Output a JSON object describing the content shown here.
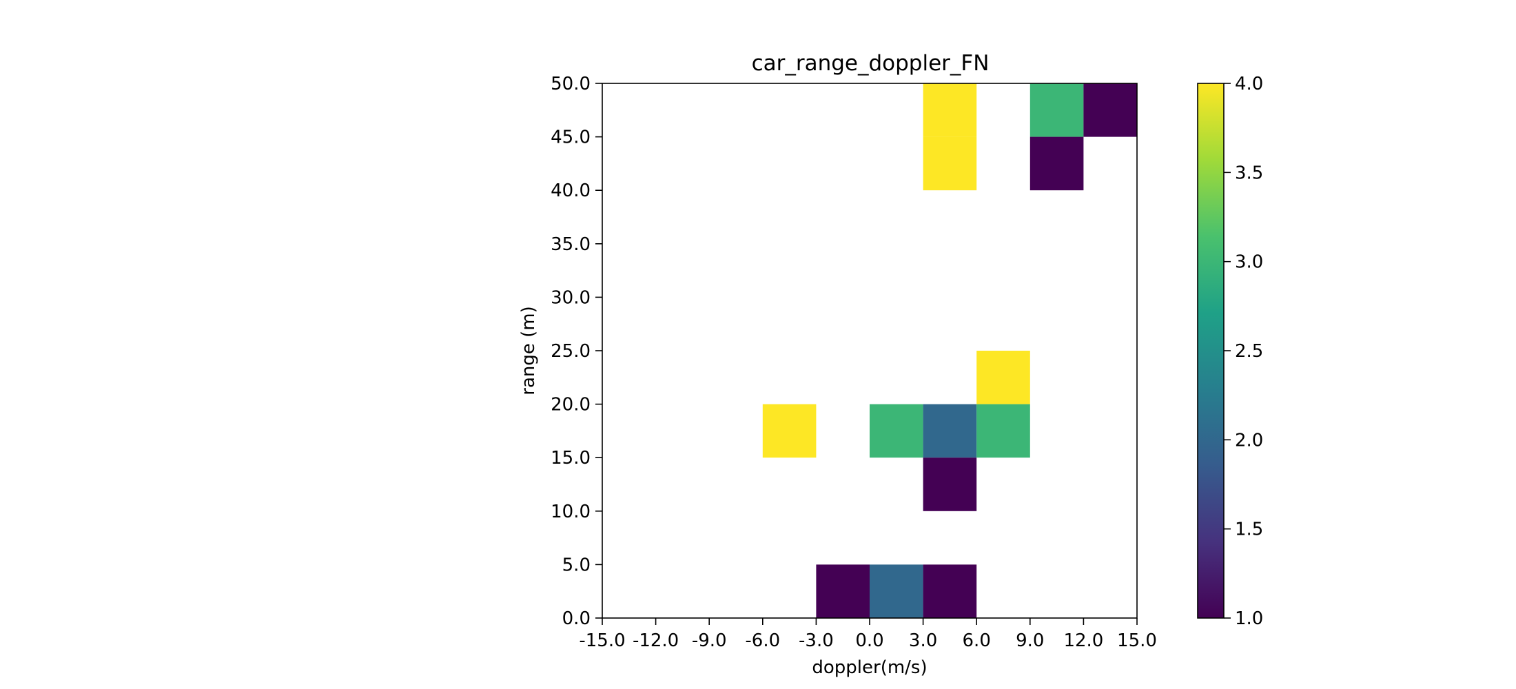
{
  "chart_data": {
    "type": "heatmap",
    "title": "car_range_doppler_FN",
    "xlabel": "doppler(m/s)",
    "ylabel": "range (m)",
    "xlim": [
      -15,
      15
    ],
    "ylim": [
      0,
      50
    ],
    "x_ticks": [
      "-15.0",
      "-12.0",
      "-9.0",
      "-6.0",
      "-3.0",
      "0.0",
      "3.0",
      "6.0",
      "9.0",
      "12.0",
      "15.0"
    ],
    "y_ticks": [
      "0.0",
      "5.0",
      "10.0",
      "15.0",
      "20.0",
      "25.0",
      "30.0",
      "35.0",
      "40.0",
      "45.0",
      "50.0"
    ],
    "cell_size": {
      "doppler": 3,
      "range": 5
    },
    "colorbar": {
      "min": 1.0,
      "max": 4.0,
      "ticks": [
        "1.0",
        "1.5",
        "2.0",
        "2.5",
        "3.0",
        "3.5",
        "4.0"
      ],
      "colormap": "viridis"
    },
    "cells": [
      {
        "doppler": 3,
        "range": 45,
        "value": 4
      },
      {
        "doppler": 3,
        "range": 40,
        "value": 4
      },
      {
        "doppler": 9,
        "range": 45,
        "value": 3
      },
      {
        "doppler": 12,
        "range": 45,
        "value": 1
      },
      {
        "doppler": 9,
        "range": 40,
        "value": 1
      },
      {
        "doppler": 6,
        "range": 20,
        "value": 4
      },
      {
        "doppler": -6,
        "range": 15,
        "value": 4
      },
      {
        "doppler": 0,
        "range": 15,
        "value": 3
      },
      {
        "doppler": 3,
        "range": 15,
        "value": 2
      },
      {
        "doppler": 6,
        "range": 15,
        "value": 3
      },
      {
        "doppler": 3,
        "range": 10,
        "value": 1
      },
      {
        "doppler": -3,
        "range": 0,
        "value": 1
      },
      {
        "doppler": 0,
        "range": 0,
        "value": 2
      },
      {
        "doppler": 3,
        "range": 0,
        "value": 1
      }
    ]
  }
}
